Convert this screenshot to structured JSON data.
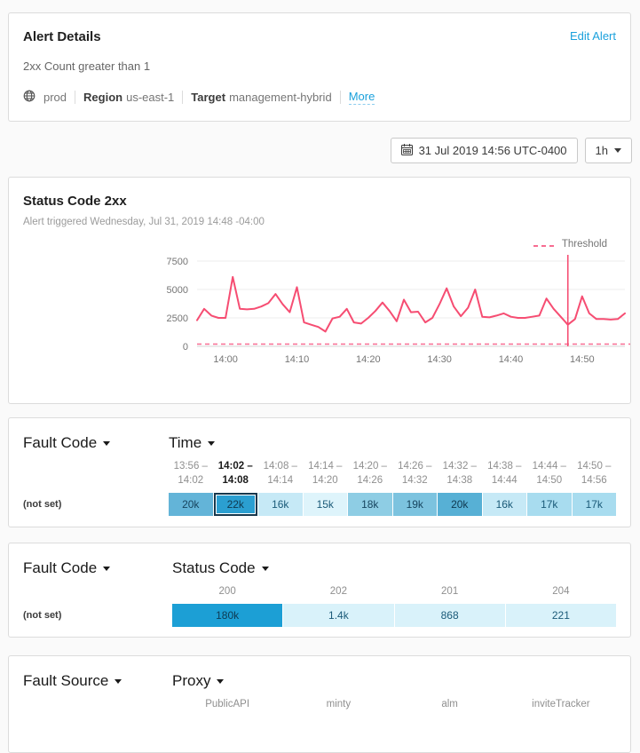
{
  "alert": {
    "title": "Alert Details",
    "edit_link": "Edit Alert",
    "condition": "2xx Count greater than 1",
    "environment": "prod",
    "region_label": "Region",
    "region_value": "us-east-1",
    "target_label": "Target",
    "target_value": "management-hybrid",
    "more_link": "More"
  },
  "toolbar": {
    "datetime": "31 Jul 2019 14:56 UTC-0400",
    "range": "1h"
  },
  "chart_card": {
    "title": "Status Code 2xx",
    "subtitle": "Alert triggered Wednesday, Jul 31, 2019 14:48 -04:00",
    "legend_threshold": "Threshold"
  },
  "chart_data": {
    "type": "line",
    "title": "Status Code 2xx",
    "x": [
      "13:56",
      "13:57",
      "13:58",
      "13:59",
      "14:00",
      "14:01",
      "14:02",
      "14:03",
      "14:04",
      "14:05",
      "14:06",
      "14:07",
      "14:08",
      "14:09",
      "14:10",
      "14:11",
      "14:12",
      "14:13",
      "14:14",
      "14:15",
      "14:16",
      "14:17",
      "14:18",
      "14:19",
      "14:20",
      "14:21",
      "14:22",
      "14:23",
      "14:24",
      "14:25",
      "14:26",
      "14:27",
      "14:28",
      "14:29",
      "14:30",
      "14:31",
      "14:32",
      "14:33",
      "14:34",
      "14:35",
      "14:36",
      "14:37",
      "14:38",
      "14:39",
      "14:40",
      "14:41",
      "14:42",
      "14:43",
      "14:44",
      "14:45",
      "14:46",
      "14:47",
      "14:48",
      "14:49",
      "14:50",
      "14:51",
      "14:52",
      "14:53",
      "14:54",
      "14:55",
      "14:56"
    ],
    "values": [
      2300,
      3300,
      2700,
      2500,
      2500,
      6100,
      3300,
      3250,
      3300,
      3500,
      3800,
      4600,
      3700,
      3000,
      5200,
      2100,
      1900,
      1700,
      1300,
      2450,
      2600,
      3300,
      2100,
      2000,
      2500,
      3100,
      3850,
      3100,
      2200,
      4100,
      3000,
      3050,
      2100,
      2500,
      3700,
      5100,
      3500,
      2650,
      3400,
      5000,
      2600,
      2550,
      2700,
      2900,
      2600,
      2500,
      2500,
      2600,
      2700,
      4200,
      3300,
      2600,
      1900,
      2400,
      4400,
      2900,
      2400,
      2400,
      2350,
      2400,
      2900
    ],
    "threshold": 1,
    "trigger_time": "14:48",
    "ylim": [
      0,
      7500
    ],
    "yticks": [
      7500,
      5000,
      2500,
      0
    ],
    "xticks": [
      "14:00",
      "14:10",
      "14:20",
      "14:30",
      "14:40",
      "14:50"
    ],
    "grid": true,
    "legend_position": "top-right",
    "line_color": "#f64d72",
    "threshold_color": "#f76d92",
    "trigger_color": "#f64d72"
  },
  "heatmaps": [
    {
      "row_dim": "Fault Code",
      "col_dim": "Time",
      "row_label": "(not set)",
      "columns": [
        {
          "l1": "13:56 –",
          "l2": "14:02",
          "bold": false
        },
        {
          "l1": "14:02 –",
          "l2": "14:08",
          "bold": true
        },
        {
          "l1": "14:08 –",
          "l2": "14:14",
          "bold": false
        },
        {
          "l1": "14:14 –",
          "l2": "14:20",
          "bold": false
        },
        {
          "l1": "14:20 –",
          "l2": "14:26",
          "bold": false
        },
        {
          "l1": "14:26 –",
          "l2": "14:32",
          "bold": false
        },
        {
          "l1": "14:32 –",
          "l2": "14:38",
          "bold": false
        },
        {
          "l1": "14:38 –",
          "l2": "14:44",
          "bold": false
        },
        {
          "l1": "14:44 –",
          "l2": "14:50",
          "bold": false
        },
        {
          "l1": "14:50 –",
          "l2": "14:56",
          "bold": false
        }
      ],
      "cells": [
        {
          "v": "20k",
          "bg": "#63b4d8",
          "fg": "#17455f",
          "selected": false
        },
        {
          "v": "22k",
          "bg": "#2b9fd1",
          "fg": "#0f3950",
          "selected": true
        },
        {
          "v": "16k",
          "bg": "#c6e9f6",
          "fg": "#1a5a78",
          "selected": false
        },
        {
          "v": "15k",
          "bg": "#def4fb",
          "fg": "#1a5a78",
          "selected": false
        },
        {
          "v": "18k",
          "bg": "#8ecde4",
          "fg": "#17455f",
          "selected": false
        },
        {
          "v": "19k",
          "bg": "#7cc3df",
          "fg": "#17455f",
          "selected": false
        },
        {
          "v": "20k",
          "bg": "#57b0d5",
          "fg": "#0f3950",
          "selected": false
        },
        {
          "v": "16k",
          "bg": "#c6e9f6",
          "fg": "#1a5a78",
          "selected": false
        },
        {
          "v": "17k",
          "bg": "#a8dcef",
          "fg": "#1a5a78",
          "selected": false
        },
        {
          "v": "17k",
          "bg": "#a8dcef",
          "fg": "#1a5a78",
          "selected": false
        }
      ]
    },
    {
      "row_dim": "Fault Code",
      "col_dim": "Status Code",
      "row_label": "(not set)",
      "columns": [
        {
          "l1": "200",
          "bold": false
        },
        {
          "l1": "202",
          "bold": false
        },
        {
          "l1": "201",
          "bold": false
        },
        {
          "l1": "204",
          "bold": false
        }
      ],
      "cells": [
        {
          "v": "180k",
          "bg": "#1c9fd5",
          "fg": "#0e3a52",
          "selected": false
        },
        {
          "v": "1.4k",
          "bg": "#d9f2fa",
          "fg": "#1a5a78",
          "selected": false
        },
        {
          "v": "868",
          "bg": "#d9f2fa",
          "fg": "#1a5a78",
          "selected": false
        },
        {
          "v": "221",
          "bg": "#d9f2fa",
          "fg": "#1a5a78",
          "selected": false
        }
      ]
    },
    {
      "row_dim": "Fault Source",
      "col_dim": "Proxy",
      "row_label": "",
      "columns": [
        {
          "l1": "PublicAPI",
          "bold": false
        },
        {
          "l1": "minty",
          "bold": false
        },
        {
          "l1": "alm",
          "bold": false
        },
        {
          "l1": "inviteTracker",
          "bold": false
        }
      ],
      "cells": []
    }
  ]
}
